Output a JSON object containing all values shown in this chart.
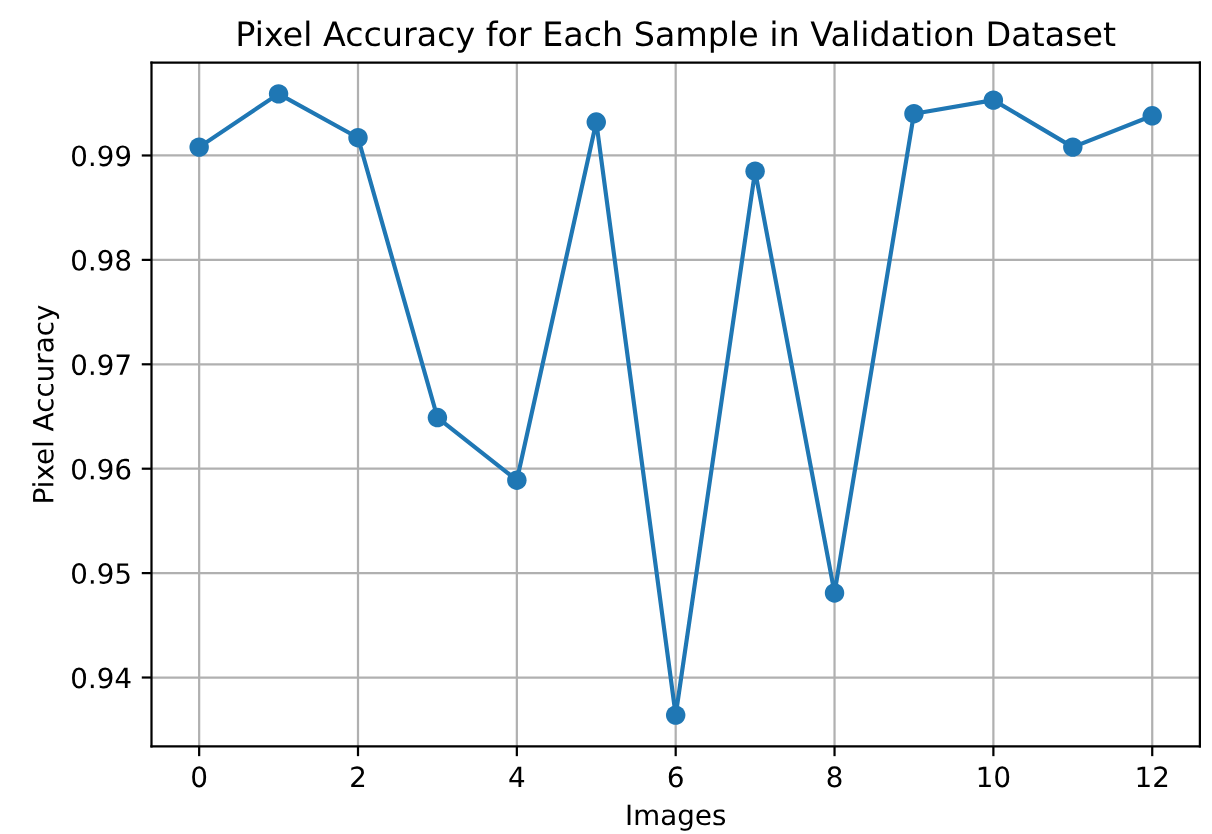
{
  "chart_data": {
    "type": "line",
    "title": "Pixel Accuracy for Each Sample in Validation Dataset",
    "xlabel": "Images",
    "ylabel": "Pixel Accuracy",
    "x": [
      0,
      1,
      2,
      3,
      4,
      5,
      6,
      7,
      8,
      9,
      10,
      11,
      12
    ],
    "series": [
      {
        "color": "#1f77b4",
        "values": [
          0.9908,
          0.9959,
          0.9917,
          0.9649,
          0.9589,
          0.9932,
          0.9364,
          0.9885,
          0.9481,
          0.994,
          0.9953,
          0.9908,
          0.9938
        ]
      }
    ],
    "xlim": [
      -0.6,
      12.6
    ],
    "ylim": [
      0.9334,
      0.9989
    ],
    "xticks": [
      0,
      2,
      4,
      6,
      8,
      10,
      12
    ],
    "yticks": [
      0.94,
      0.95,
      0.96,
      0.97,
      0.98,
      0.99
    ],
    "grid": true,
    "marker": "circle",
    "line_style": "solid"
  }
}
